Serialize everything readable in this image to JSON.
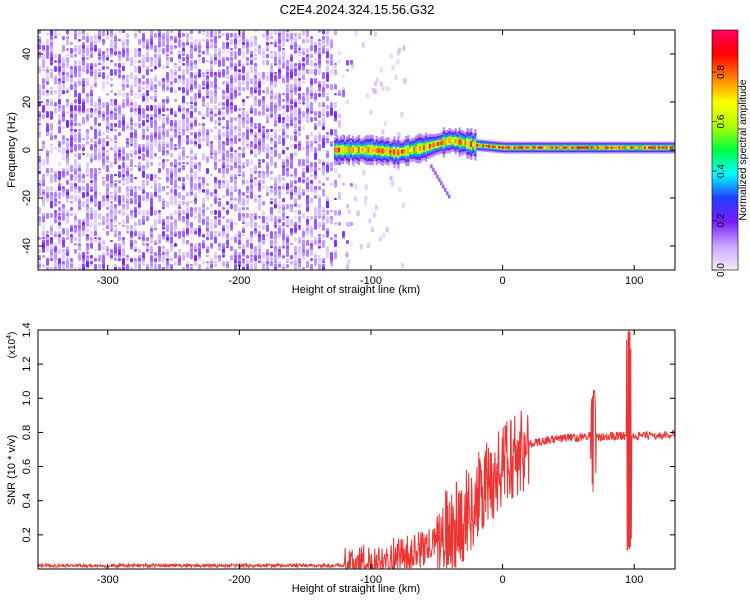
{
  "title": "C2E4.2024.324.15.56.G32",
  "chart_data": [
    {
      "type": "heatmap",
      "xlabel": "Height of straight line (km)",
      "ylabel": "Frequency (Hz)",
      "xlim": [
        -353,
        131
      ],
      "ylim": [
        -50,
        50
      ],
      "xticks": [
        -300,
        -200,
        -100,
        0,
        100
      ],
      "yticks": [
        -40,
        -20,
        0,
        20,
        40
      ],
      "noise_region_x": [
        -353,
        -120
      ],
      "signal_band_center": [
        {
          "x": -128,
          "freq": 0
        },
        {
          "x": -100,
          "freq": 0
        },
        {
          "x": -80,
          "freq": -1
        },
        {
          "x": -60,
          "freq": 1
        },
        {
          "x": -40,
          "freq": 4
        },
        {
          "x": -20,
          "freq": 2
        },
        {
          "x": 0,
          "freq": 1
        },
        {
          "x": 40,
          "freq": 1
        },
        {
          "x": 80,
          "freq": 1
        },
        {
          "x": 131,
          "freq": 1
        }
      ],
      "colorbar": {
        "label": "Normalized spectral amplitude",
        "ticks": [
          0.0,
          0.2,
          0.4,
          0.6,
          0.8
        ],
        "range": [
          0,
          0.97
        ],
        "colors": [
          "#f4ecff",
          "#c8a8ff",
          "#7a1cff",
          "#2040ff",
          "#00ffff",
          "#00ff40",
          "#b0ff00",
          "#ffff00",
          "#ff8000",
          "#ff0000",
          "#ff0060"
        ]
      },
      "grid": false
    },
    {
      "type": "line",
      "xlabel": "Height of straight line (km)",
      "ylabel": "SNR (10 * v/v)",
      "yscale_label": "(x10",
      "yscale_exp": "4",
      "xlim": [
        -353,
        131
      ],
      "ylim": [
        0,
        1.4
      ],
      "xticks": [
        -300,
        -200,
        -100,
        0,
        100
      ],
      "yticks": [
        0.2,
        0.4,
        0.6,
        0.8,
        1.0,
        1.2,
        1.4
      ],
      "series": [
        {
          "color": "#ee3333",
          "x": [
            -353,
            -300,
            -250,
            -200,
            -150,
            -120,
            -100,
            -90,
            -80,
            -70,
            -60,
            -50,
            -40,
            -30,
            -20,
            -10,
            0,
            10,
            20,
            30,
            40,
            50,
            60,
            65,
            69,
            72,
            75,
            80,
            90,
            94,
            96,
            98,
            100,
            110,
            120,
            131
          ],
          "y": [
            0.02,
            0.02,
            0.02,
            0.02,
            0.02,
            0.02,
            0.04,
            0.06,
            0.08,
            0.09,
            0.12,
            0.15,
            0.22,
            0.3,
            0.4,
            0.5,
            0.6,
            0.68,
            0.73,
            0.75,
            0.76,
            0.77,
            0.77,
            0.78,
            0.78,
            0.77,
            0.77,
            0.78,
            0.78,
            0.78,
            0.8,
            0.77,
            0.78,
            0.78,
            0.78,
            0.79
          ],
          "spikes": [
            {
              "x": 69,
              "min": 0.45,
              "max": 1.05
            },
            {
              "x": 96,
              "min": 0.1,
              "max": 1.4
            }
          ],
          "noise": [
            {
              "x_from": -353,
              "x_to": -120,
              "amp": 0.02
            },
            {
              "x_from": -120,
              "x_to": -50,
              "amp": 0.12
            },
            {
              "x_from": -50,
              "x_to": 20,
              "amp": 0.3
            },
            {
              "x_from": 20,
              "x_to": 131,
              "amp": 0.05
            }
          ]
        }
      ],
      "grid": false
    }
  ]
}
